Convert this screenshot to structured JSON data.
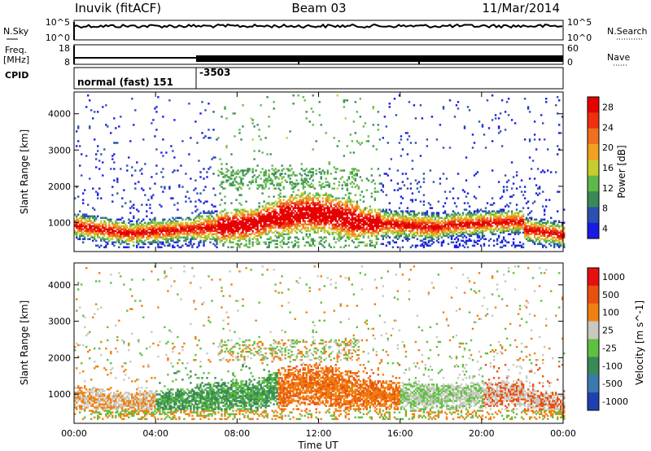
{
  "header": {
    "station": "Inuvik (fitACF)",
    "beam": "Beam 03",
    "date": "11/Mar/2014"
  },
  "panels": {
    "nsky_label": "N.Sky",
    "nsearch_label": "N.Search",
    "freq_label_1": "Freq.",
    "freq_label_2": "[MHz]",
    "nave_label": "Nave",
    "cpid_label": "CPID",
    "nsky_ticks": [
      "10^5",
      "10^0"
    ],
    "nsearch_ticks": [
      "10^5",
      "10^0"
    ],
    "freq_ticks": [
      "18",
      "8"
    ],
    "nave_ticks": [
      "60",
      "0"
    ],
    "cpid_1": "normal (fast) 151",
    "cpid_2": "-3503"
  },
  "colors": {
    "power": [
      "#1a1ae6",
      "#2a50b0",
      "#3a8a58",
      "#5fb84a",
      "#c8cc30",
      "#f2a020",
      "#f07020",
      "#ee3010",
      "#e60000"
    ],
    "velocity": [
      "#2040b0",
      "#3a7ab0",
      "#3a8a58",
      "#5fc040",
      "#c8c8c0",
      "#f08010",
      "#e85010",
      "#e61010"
    ]
  },
  "chart_data": [
    {
      "type": "heatmap",
      "name": "Power",
      "ylabel": "Slant Range [km]",
      "yticks": [
        1000,
        2000,
        3000,
        4000
      ],
      "ylim": [
        200,
        4600
      ],
      "xlim": [
        0,
        24
      ],
      "xticks": [
        "00:00",
        "04:00",
        "08:00",
        "12:00",
        "16:00",
        "20:00",
        "00:00"
      ],
      "colorbar_label": "Power [dB]",
      "colorbar_ticks": [
        "28",
        "24",
        "20",
        "16",
        "12",
        "8",
        "4"
      ]
    },
    {
      "type": "heatmap",
      "name": "Velocity",
      "ylabel": "Slant Range [km]",
      "yticks": [
        1000,
        2000,
        3000,
        4000
      ],
      "ylim": [
        200,
        4600
      ],
      "xlim": [
        0,
        24
      ],
      "xticks": [
        "00:00",
        "04:00",
        "08:00",
        "12:00",
        "16:00",
        "20:00",
        "00:00"
      ],
      "xlabel": "Time UT",
      "colorbar_label": "Velocity [m s^-1]",
      "colorbar_ticks": [
        "1000",
        "500",
        "100",
        "25",
        "-25",
        "-100",
        "-500",
        "-1000"
      ]
    }
  ]
}
